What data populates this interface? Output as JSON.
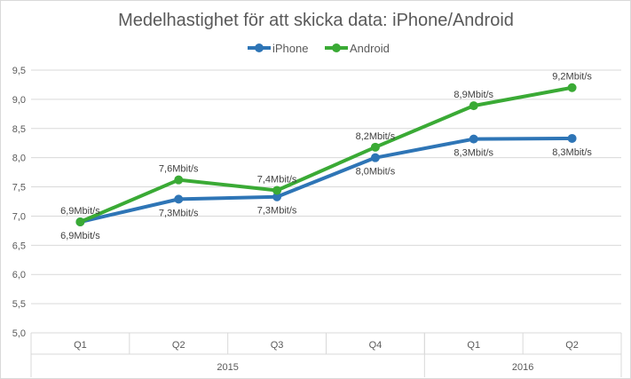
{
  "chart_data": {
    "type": "line",
    "title": "Medelhastighet för att skicka data: iPhone/Android",
    "categories": [
      "Q1",
      "Q2",
      "Q3",
      "Q4",
      "Q1",
      "Q2"
    ],
    "category_groups": [
      {
        "label": "2015",
        "count": 4
      },
      {
        "label": "2016",
        "count": 2
      }
    ],
    "ylim": [
      5.0,
      9.5
    ],
    "yticks": [
      "5,0",
      "5,5",
      "6,0",
      "6,5",
      "7,0",
      "7,5",
      "8,0",
      "8,5",
      "9,0",
      "9,5"
    ],
    "grid": true,
    "legend_position": "top-center",
    "series": [
      {
        "name": "iPhone",
        "color": "#2E75B6",
        "values": [
          6.9,
          7.29,
          7.33,
          8.0,
          8.32,
          8.33
        ],
        "labels": [
          "6,9Mbit/s",
          "7,3Mbit/s",
          "7,3Mbit/s",
          "8,0Mbit/s",
          "8,3Mbit/s",
          "8,3Mbit/s"
        ]
      },
      {
        "name": "Android",
        "color": "#3AAA35",
        "values": [
          6.9,
          7.62,
          7.44,
          8.18,
          8.89,
          9.2
        ],
        "labels": [
          "6,9Mbit/s",
          "7,6Mbit/s",
          "7,4Mbit/s",
          "8,2Mbit/s",
          "8,9Mbit/s",
          "9,2Mbit/s"
        ]
      }
    ]
  }
}
